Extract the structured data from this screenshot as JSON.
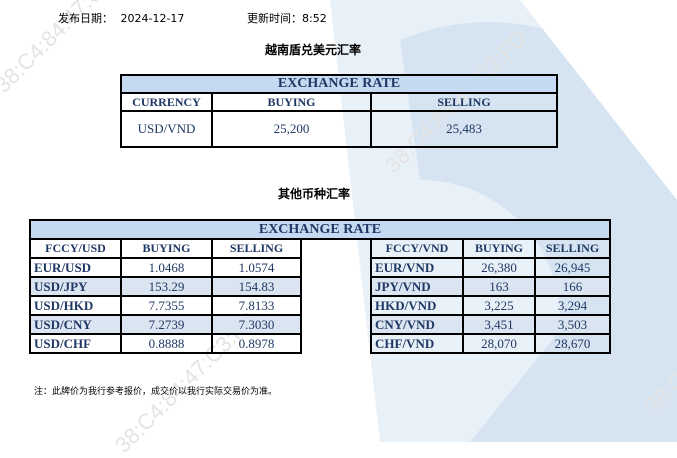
{
  "header": {
    "date_label": "发布日期：",
    "date": "2024-12-17",
    "time_label": "更新时间：",
    "time": "8:52"
  },
  "usd_table": {
    "section_title": "越南盾兑美元汇率",
    "title": "EXCHANGE RATE",
    "columns": [
      "CURRENCY",
      "BUYING",
      "SELLING"
    ],
    "row": {
      "pair": "USD/VND",
      "buying": "25,200",
      "selling": "25,483"
    }
  },
  "other_table": {
    "section_title": "其他币种汇率",
    "title": "EXCHANGE  RATE",
    "left_columns": [
      "FCCY/USD",
      "BUYING",
      "SELLING"
    ],
    "right_columns": [
      "FCCY/VND",
      "BUYING",
      "SELLING"
    ],
    "rows": [
      {
        "l_pair": "EUR/USD",
        "l_buy": "1.0468",
        "l_sell": "1.0574",
        "r_pair": "EUR/VND",
        "r_buy": "26,380",
        "r_sell": "26,945"
      },
      {
        "l_pair": "USD/JPY",
        "l_buy": "153.29",
        "l_sell": "154.83",
        "r_pair": "JPY/VND",
        "r_buy": "163",
        "r_sell": "166"
      },
      {
        "l_pair": "USD/HKD",
        "l_buy": "7.7355",
        "l_sell": "7.8133",
        "r_pair": "HKD/VND",
        "r_buy": "3,225",
        "r_sell": "3,294"
      },
      {
        "l_pair": "USD/CNY",
        "l_buy": "7.2739",
        "l_sell": "7.3030",
        "r_pair": "CNY/VND",
        "r_buy": "3,451",
        "r_sell": "3,503"
      },
      {
        "l_pair": "USD/CHF",
        "l_buy": "0.8888",
        "l_sell": "0.8978",
        "r_pair": "CHF/VND",
        "r_buy": "28,070",
        "r_sell": "28,670"
      }
    ]
  },
  "note": "注：此牌价为我行参考报价，成交价以我行实际交易价为准。",
  "watermark": {
    "text": "38:C4:84:47:C3:FD",
    "color": "#c5d9f1"
  }
}
